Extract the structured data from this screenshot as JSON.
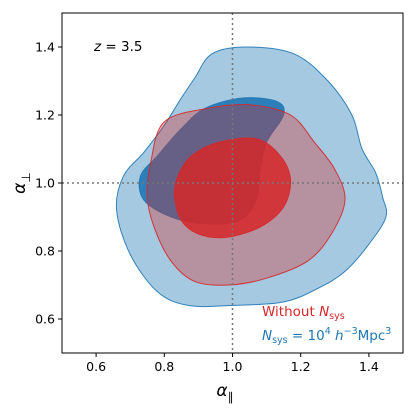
{
  "chart_data": {
    "type": "contour",
    "xlabel": "α",
    "xlabel_sub": "∥",
    "ylabel": "α",
    "ylabel_sub": "⊥",
    "xlim": [
      0.5,
      1.5
    ],
    "ylim": [
      0.5,
      1.5
    ],
    "xticks": [
      "0.6",
      "0.8",
      "1.0",
      "1.2",
      "1.4"
    ],
    "yticks": [
      "0.6",
      "0.8",
      "1.0",
      "1.2",
      "1.4"
    ],
    "redshift_label": {
      "italic": "z",
      "text": " = 3.5"
    },
    "reference_lines": {
      "x": 1.0,
      "y": 1.0,
      "style": "dotted",
      "color": "#777777"
    },
    "legend_labels": [
      {
        "name": "without_nsys",
        "text": "Without N",
        "sub": "sys",
        "color": "#d62728"
      },
      {
        "name": "with_nsys",
        "text_parts": [
          "N",
          "sys",
          " = 10",
          "4",
          " h",
          "−3",
          "Mpc",
          "3"
        ],
        "color": "#1f77b4"
      }
    ],
    "series": [
      {
        "name": "with_nsys",
        "color": "#1f77b4",
        "levels": [
          {
            "label": "95%",
            "opacity": 0.4,
            "points": [
              [
                0.89,
                1.31
              ],
              [
                0.94,
                1.38
              ],
              [
                1.04,
                1.4
              ],
              [
                1.18,
                1.38
              ],
              [
                1.28,
                1.3
              ],
              [
                1.35,
                1.2
              ],
              [
                1.38,
                1.1
              ],
              [
                1.42,
                1.03
              ],
              [
                1.44,
                0.96
              ],
              [
                1.45,
                0.9
              ],
              [
                1.4,
                0.82
              ],
              [
                1.33,
                0.74
              ],
              [
                1.25,
                0.69
              ],
              [
                1.15,
                0.65
              ],
              [
                1.0,
                0.64
              ],
              [
                0.87,
                0.64
              ],
              [
                0.78,
                0.68
              ],
              [
                0.7,
                0.79
              ],
              [
                0.66,
                0.92
              ],
              [
                0.68,
                1.02
              ],
              [
                0.74,
                1.09
              ],
              [
                0.8,
                1.17
              ],
              [
                0.85,
                1.25
              ]
            ]
          },
          {
            "label": "68%",
            "opacity": 0.9,
            "points": [
              [
                0.92,
                1.22
              ],
              [
                1.03,
                1.25
              ],
              [
                1.13,
                1.24
              ],
              [
                1.15,
                1.2
              ],
              [
                1.1,
                1.12
              ],
              [
                1.08,
                1.03
              ],
              [
                1.07,
                0.95
              ],
              [
                1.02,
                0.89
              ],
              [
                0.92,
                0.88
              ],
              [
                0.82,
                0.9
              ],
              [
                0.74,
                0.95
              ],
              [
                0.73,
                1.02
              ],
              [
                0.78,
                1.08
              ],
              [
                0.85,
                1.16
              ]
            ]
          }
        ]
      },
      {
        "name": "without_nsys",
        "color": "#d62728",
        "levels": [
          {
            "label": "95%",
            "opacity": 0.35,
            "points": [
              [
                0.8,
                1.18
              ],
              [
                0.93,
                1.22
              ],
              [
                1.05,
                1.23
              ],
              [
                1.17,
                1.2
              ],
              [
                1.24,
                1.12
              ],
              [
                1.3,
                1.04
              ],
              [
                1.33,
                0.95
              ],
              [
                1.29,
                0.85
              ],
              [
                1.22,
                0.77
              ],
              [
                1.1,
                0.72
              ],
              [
                0.99,
                0.7
              ],
              [
                0.89,
                0.71
              ],
              [
                0.82,
                0.77
              ],
              [
                0.77,
                0.87
              ],
              [
                0.75,
                0.96
              ],
              [
                0.76,
                1.06
              ]
            ]
          },
          {
            "label": "68%",
            "opacity": 0.85,
            "points": [
              [
                0.88,
                1.08
              ],
              [
                0.96,
                1.12
              ],
              [
                1.07,
                1.13
              ],
              [
                1.14,
                1.08
              ],
              [
                1.17,
                1.01
              ],
              [
                1.15,
                0.93
              ],
              [
                1.08,
                0.87
              ],
              [
                0.98,
                0.84
              ],
              [
                0.9,
                0.85
              ],
              [
                0.85,
                0.89
              ],
              [
                0.83,
                0.96
              ],
              [
                0.84,
                1.02
              ]
            ]
          }
        ]
      }
    ]
  }
}
